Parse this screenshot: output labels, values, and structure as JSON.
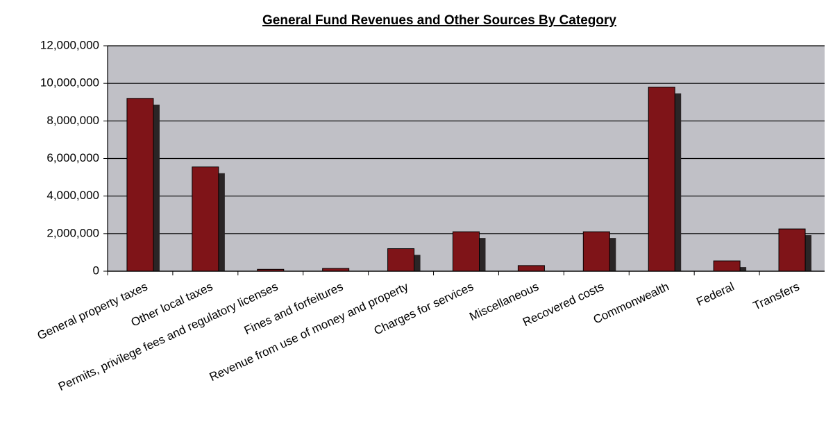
{
  "chart_data": {
    "type": "bar",
    "title": "General Fund Revenues and Other Sources By Category",
    "categories": [
      "General property taxes",
      "Other local taxes",
      "Permits, privilege fees and regulatory licenses",
      "Fines and forfeitures",
      "Revenue from use of money and property",
      "Charges for services",
      "Miscellaneous",
      "Recovered costs",
      "Commonwealth",
      "Federal",
      "Transfers"
    ],
    "values": [
      9200000,
      5550000,
      100000,
      150000,
      1200000,
      2100000,
      300000,
      2100000,
      9800000,
      550000,
      2250000
    ],
    "color": "#7f1418",
    "ylim": [
      0,
      12000000
    ],
    "yticks": [
      0,
      {
        "value": 2000000,
        "label": "2,000,000"
      },
      {
        "value": 4000000,
        "label": "4,000,000"
      },
      {
        "value": 6000000,
        "label": "6,000,000"
      },
      {
        "value": 8000000,
        "label": "8,000,000"
      },
      {
        "value": 10000000,
        "label": "10,000,000"
      },
      {
        "value": 12000000,
        "label": "12,000,000"
      }
    ],
    "grid": true
  }
}
